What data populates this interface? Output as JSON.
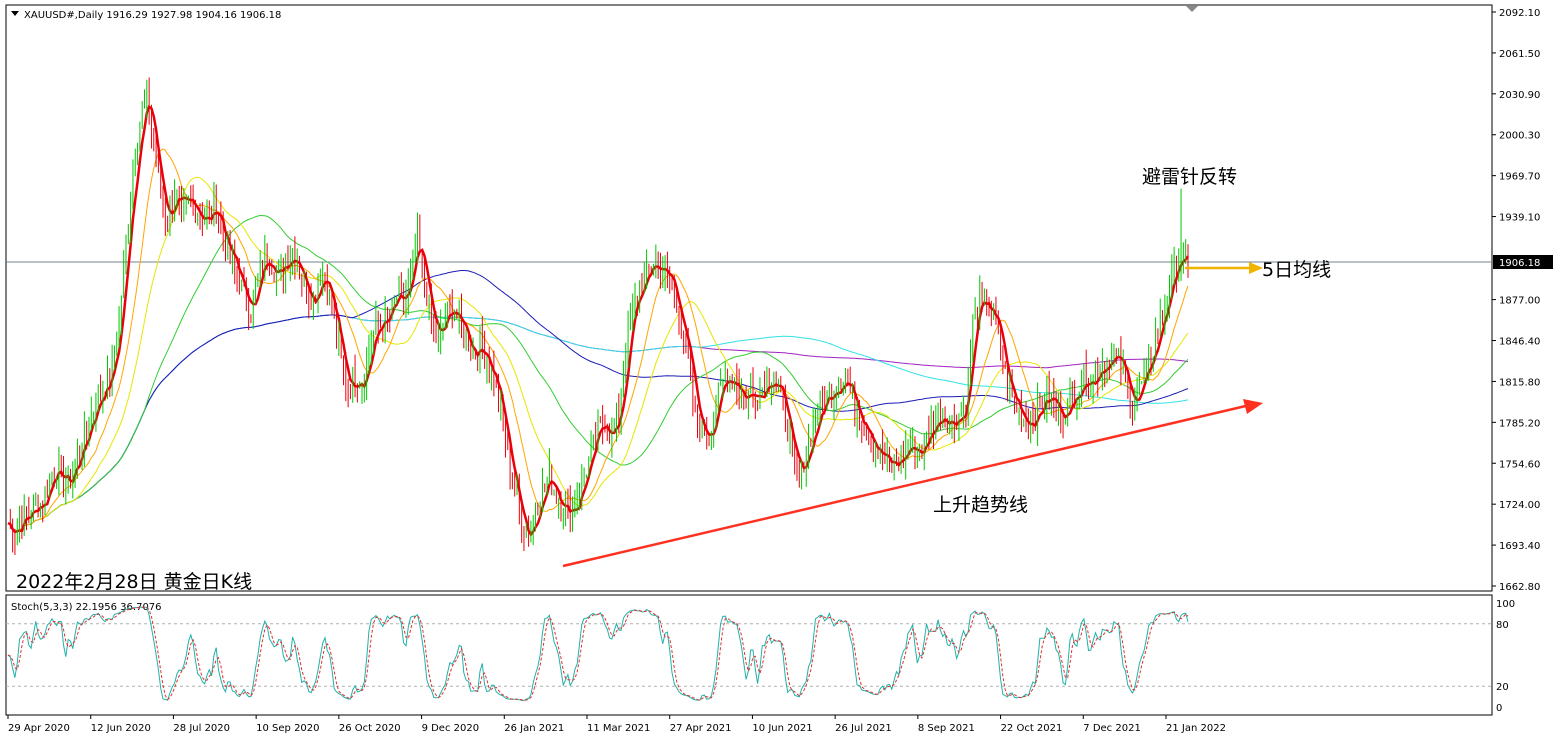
{
  "window": {
    "symbol_header": "XAUUSD#,Daily  1916.29 1927.98 1904.16 1906.18"
  },
  "chart_data": [
    {
      "type": "candlestick",
      "ohlc_summary": {
        "open": 1916.29,
        "high": 1927.98,
        "low": 1904.16,
        "close": 1906.18
      },
      "ylim": [
        1662.8,
        2092.1
      ],
      "y_ticks": [
        "2092.10",
        "2061.50",
        "2030.90",
        "2000.30",
        "1969.70",
        "1939.10",
        "1906.18",
        "1877.00",
        "1846.40",
        "1815.80",
        "1785.20",
        "1754.60",
        "1724.00",
        "1693.40",
        "1662.80"
      ],
      "x_ticks": [
        "29 Apr 2020",
        "12 Jun 2020",
        "28 Jul 2020",
        "10 Sep 2020",
        "26 Oct 2020",
        "9 Dec 2020",
        "26 Jan 2021",
        "11 Mar 2021",
        "27 Apr 2021",
        "10 Jun 2021",
        "26 Jul 2021",
        "8 Sep 2021",
        "22 Oct 2021",
        "7 Dec 2021",
        "21 Jan 2022"
      ],
      "current_price": "1906.18",
      "close_series": [
        1710,
        1702,
        1716,
        1713,
        1725,
        1722,
        1745,
        1752,
        1738,
        1743,
        1760,
        1772,
        1790,
        1805,
        1812,
        1825,
        1860,
        1920,
        1975,
        2010,
        2030,
        1990,
        1955,
        1935,
        1960,
        1940,
        1950,
        1945,
        1940,
        1935,
        1950,
        1920,
        1910,
        1895,
        1880,
        1870,
        1890,
        1910,
        1905,
        1895,
        1905,
        1915,
        1900,
        1885,
        1875,
        1900,
        1890,
        1860,
        1830,
        1810,
        1820,
        1815,
        1840,
        1855,
        1860,
        1865,
        1880,
        1870,
        1895,
        1920,
        1890,
        1860,
        1845,
        1865,
        1870,
        1860,
        1850,
        1835,
        1845,
        1830,
        1820,
        1790,
        1760,
        1735,
        1710,
        1700,
        1720,
        1735,
        1745,
        1730,
        1725,
        1715,
        1730,
        1745,
        1760,
        1780,
        1785,
        1775,
        1790,
        1840,
        1870,
        1885,
        1895,
        1905,
        1900,
        1895,
        1880,
        1860,
        1830,
        1790,
        1780,
        1775,
        1800,
        1815,
        1820,
        1815,
        1800,
        1810,
        1805,
        1815,
        1820,
        1810,
        1790,
        1760,
        1740,
        1765,
        1780,
        1795,
        1805,
        1810,
        1820,
        1815,
        1795,
        1790,
        1780,
        1765,
        1760,
        1750,
        1755,
        1760,
        1770,
        1760,
        1770,
        1780,
        1790,
        1790,
        1785,
        1790,
        1800,
        1860,
        1875,
        1870,
        1865,
        1840,
        1810,
        1800,
        1790,
        1785,
        1790,
        1800,
        1805,
        1795,
        1790,
        1800,
        1810,
        1820,
        1815,
        1825,
        1830,
        1835,
        1830,
        1815,
        1800,
        1810,
        1820,
        1840,
        1860,
        1880,
        1900,
        1910,
        1906.18
      ],
      "ma_lines": [
        "MA5",
        "MA10",
        "MA20",
        "MA60",
        "MA120",
        "MA250",
        "MA365"
      ],
      "annotations": [
        {
          "text": "避雷针反转"
        },
        {
          "text": "5日均线"
        },
        {
          "text": "上升趋势线"
        },
        {
          "text": "2022年2月28日 黄金日K线"
        }
      ]
    },
    {
      "type": "line",
      "title": "Stoch(5,3,3) 22.1956 36.7076",
      "ylim": [
        0,
        100
      ],
      "y_ticks": [
        "100",
        "80",
        "20",
        "0"
      ],
      "series": [
        {
          "name": "Main",
          "color": "#20b2aa"
        },
        {
          "name": "Signal",
          "color": "#e0302a"
        }
      ]
    }
  ],
  "colors": {
    "bull": "#00c800",
    "bear": "#e8000b",
    "ma5": "#e8000b",
    "ma10": "#ffa500",
    "ma20": "#e6e600",
    "ma60": "#32cd32",
    "ma120": "#1c1cb4",
    "ma250": "#30e0e8",
    "ma365": "#a020c0",
    "trend": "#ff3020",
    "arrow": "#f0b400"
  }
}
